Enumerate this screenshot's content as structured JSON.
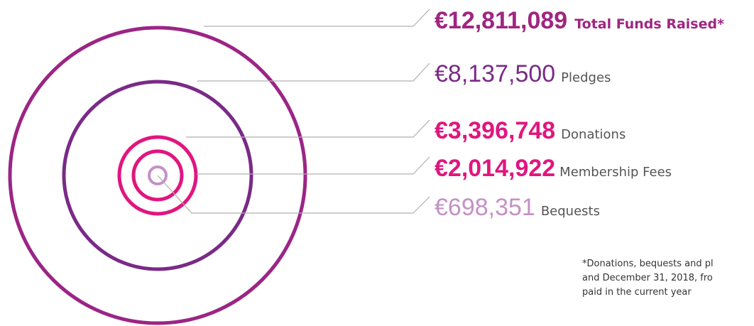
{
  "items": [
    {
      "amount": "€12,811,089",
      "label": "Total Funds Raised*"
    },
    {
      "amount": "€8,137,500",
      "label": "Pledges"
    },
    {
      "amount": "€3,396,748",
      "label": "Donations"
    },
    {
      "amount": "€2,014,922",
      "label": "Membership Fees"
    },
    {
      "amount": "€698,351",
      "label": "Bequests"
    }
  ],
  "footnote": [
    "*Donations, bequests and pl",
    "and December 31, 2018, fro",
    "paid in the current year"
  ]
}
